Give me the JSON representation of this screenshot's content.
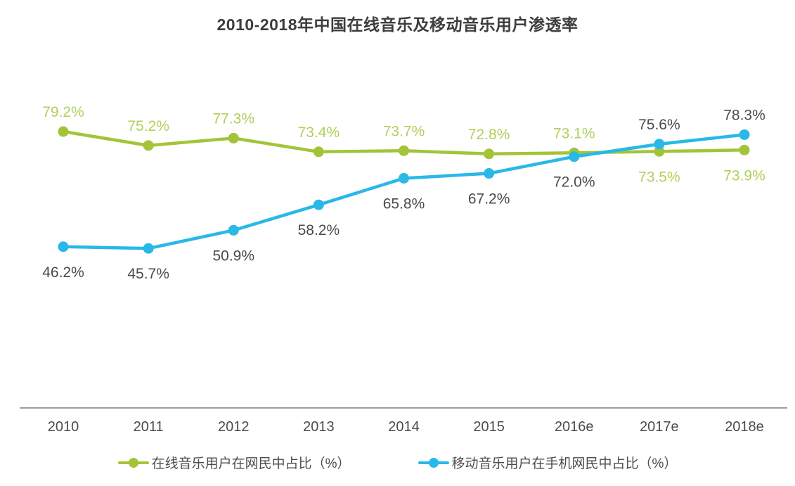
{
  "chart_data": {
    "type": "line",
    "title": "2010-2018年中国在线音乐及移动音乐用户渗透率",
    "categories": [
      "2010",
      "2011",
      "2012",
      "2013",
      "2014",
      "2015",
      "2016e",
      "2017e",
      "2018e"
    ],
    "series": [
      {
        "name": "在线音乐用户在网民中占比（%）",
        "color": "#a3c438",
        "label_color": "#b0d05a",
        "values": [
          79.2,
          75.2,
          77.3,
          73.4,
          73.7,
          72.8,
          73.1,
          73.5,
          73.9
        ],
        "labels": [
          "79.2%",
          "75.2%",
          "77.3%",
          "73.4%",
          "73.7%",
          "72.8%",
          "73.1%",
          "73.5%",
          "73.9%"
        ],
        "label_positions": [
          "above",
          "above",
          "above",
          "above",
          "above",
          "above",
          "above",
          "below",
          "below"
        ]
      },
      {
        "name": "移动音乐用户在手机网民中占比（%）",
        "color": "#29b8e8",
        "label_color": "#4a4a4a",
        "values": [
          46.2,
          45.7,
          50.9,
          58.2,
          65.8,
          67.2,
          72.0,
          75.6,
          78.3
        ],
        "labels": [
          "46.2%",
          "45.7%",
          "50.9%",
          "58.2%",
          "65.8%",
          "67.2%",
          "72.0%",
          "75.6%",
          "78.3%"
        ],
        "label_positions": [
          "below",
          "below",
          "below",
          "below",
          "below",
          "below",
          "below",
          "above",
          "above"
        ]
      }
    ],
    "ylim": [
      0,
      100
    ],
    "xlabel": "",
    "ylabel": "",
    "grid": false,
    "axis_color": "#9c9c9c",
    "tick_label_color": "#4c4c4c",
    "data_labels": true,
    "legend_position": "bottom"
  }
}
